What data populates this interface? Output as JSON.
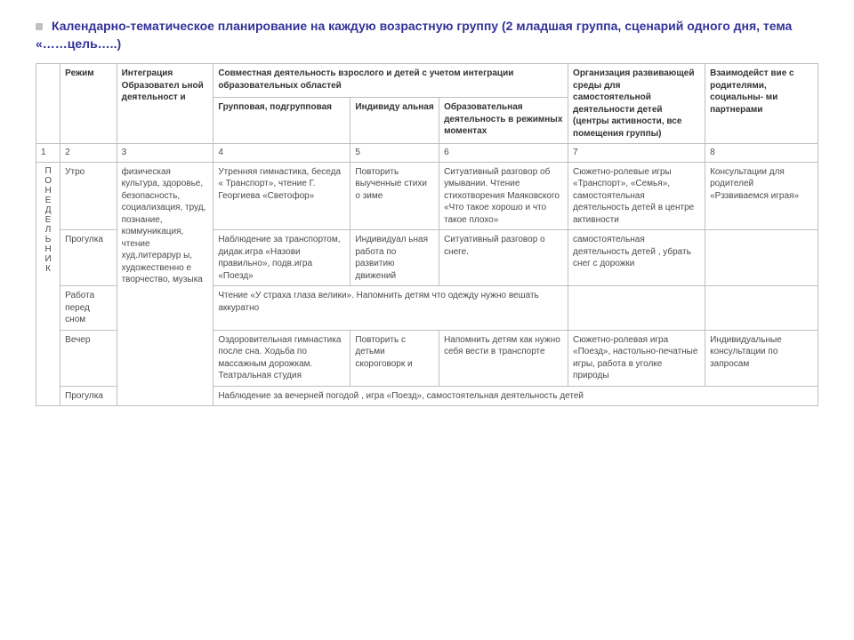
{
  "title": "Календарно-тематическое планирование на каждую возрастную группу (2 младшая группа, сценарий одного дня, тема «……цель…..)",
  "headers": {
    "col2": "Режим",
    "col3": "Интеграция Образовател ьной деятельност и",
    "col456_top": "Совместная деятельность взрослого и детей с учетом интеграции образовательных областей",
    "col4": "Групповая, подгрупповая",
    "col5": "Индивиду альная",
    "col6": "Образовательная деятельность в режимных моментах",
    "col7": "Организация развивающей среды для самостоятельной деятельности детей (центры активности, все помещения группы)",
    "col8": "Взаимодейст вие с родителями, социальны- ми партнерами"
  },
  "numrow": {
    "c1": "1",
    "c2": "2",
    "c3": "3",
    "c4": "4",
    "c5": "5",
    "c6": "6",
    "c7": "7",
    "c8": "8"
  },
  "day_letters": [
    "П",
    "О",
    "Н",
    "Е",
    "Д",
    "Е",
    "Л",
    "Ь",
    "Н",
    "И",
    "К"
  ],
  "integration_text": "физическая культура, здоровье, безопасность, социализация, труд, познание, коммуникация, чтение худ.литерарур ы, художественно е творчество, музыка",
  "rows": {
    "utro": {
      "label": "Утро",
      "c4": "Утренняя гимнастика, беседа « Транспорт», чтение Г. Георгиева «Светофор»",
      "c5": "Повторить выученные стихи о зиме",
      "c6": "Ситуативный разговор об умывании. Чтение стихотворения Маяковского «Что такое хорошо и что такое плохо»",
      "c7": "Сюжетно-ролевые игры «Транспорт», «Семья», самостоятельная деятельность детей в центре активности",
      "c8": "Консультации для родителей «Рззвиваемся  играя»"
    },
    "progulka1": {
      "label": "Прогулка",
      "c4": "Наблюдение за транспортом, дидак.игра «Назови правильно», подв.игра «Поезд»",
      "c5": "Индивидуал ьная работа по развитию движений",
      "c6": "Ситуативный разговор о снеге.",
      "c7": "самостоятельная деятельность  детей , убрать снег с дорожки",
      "c8": ""
    },
    "rabota": {
      "label": "Работа  перед сном",
      "merged": "Чтение «У страха глаза велики». Напомнить детям что одежду нужно вешать аккуратно",
      "c8": ""
    },
    "vecher": {
      "label": "Вечер",
      "c4": "Оздоровительная гимнастика после сна. Ходьба по массажным дорожкам. Театральная студия",
      "c5": "Повторить с детьми скороговорк и",
      "c6": "Напомнить детям как нужно себя вести в транспорте",
      "c7": "Сюжетно-ролевая игра  «Поезд»,  настольно-печатные  игры, работа в уголке природы",
      "c8": "Индивидуальные консультации по запросам"
    },
    "progulka2": {
      "label": "Прогулка",
      "merged": "Наблюдение за вечерней погодой , игра «Поезд», самостоятельная деятельность детей"
    }
  },
  "colors": {
    "title": "#333399",
    "border": "#bfbfbf",
    "text": "#4a4a4a",
    "bg": "#ffffff"
  }
}
